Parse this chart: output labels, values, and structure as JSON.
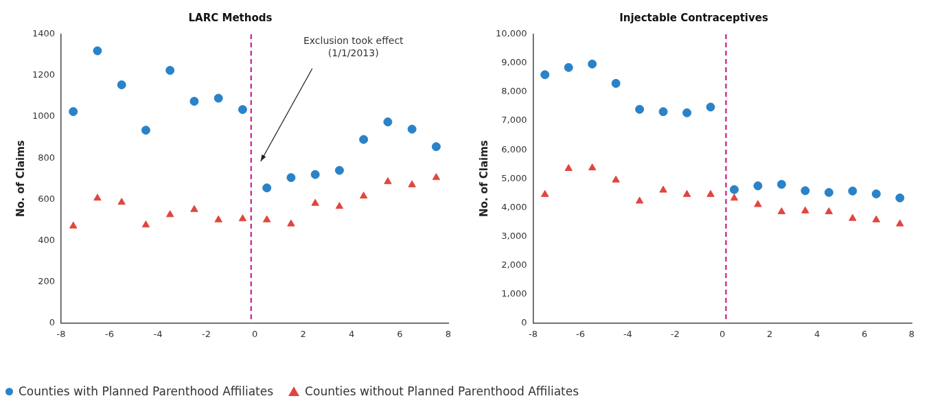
{
  "chart_data": [
    {
      "type": "scatter",
      "title": "LARC Methods",
      "ylabel": "No. of Claims",
      "x": [
        -7.5,
        -6.5,
        -5.5,
        -4.5,
        -3.5,
        -2.5,
        -1.5,
        -0.5,
        0.5,
        1.5,
        2.5,
        3.5,
        4.5,
        5.5,
        6.5,
        7.5
      ],
      "series": [
        {
          "name": "Counties with Planned Parenthood Affiliates",
          "color": "#2a82c8",
          "marker": "circle",
          "values": [
            1025,
            1320,
            1155,
            935,
            1225,
            1075,
            1090,
            1035,
            655,
            705,
            720,
            740,
            890,
            975,
            940,
            855
          ]
        },
        {
          "name": "Counties without Planned Parenthood Affiliates",
          "color": "#e0463f",
          "marker": "triangle",
          "values": [
            470,
            605,
            585,
            475,
            525,
            550,
            500,
            505,
            500,
            480,
            580,
            565,
            615,
            685,
            670,
            705
          ]
        }
      ],
      "xlim": [
        -8,
        8
      ],
      "xticks": [
        -8,
        -6,
        -4,
        -2,
        0,
        2,
        4,
        6,
        8
      ],
      "ylim": [
        0,
        1400
      ],
      "yticks": [
        0,
        200,
        400,
        600,
        800,
        1000,
        1200,
        1400
      ],
      "ref_lines": [
        {
          "axis": "x",
          "value": -0.15,
          "color": "#cc3399",
          "line_style": "dashed"
        }
      ],
      "annotations": [
        "Exclusion took effect\n(1/1/2013)"
      ],
      "grid": false,
      "legend": "bottom"
    },
    {
      "type": "scatter",
      "title": "Injectable Contraceptives",
      "ylabel": "No. of Claims",
      "x": [
        -7.5,
        -6.5,
        -5.5,
        -4.5,
        -3.5,
        -2.5,
        -1.5,
        -0.5,
        0.5,
        1.5,
        2.5,
        3.5,
        4.5,
        5.5,
        6.5,
        7.5
      ],
      "series": [
        {
          "color": "#2a82c8",
          "marker": "circle",
          "values": [
            8600,
            8850,
            8970,
            8300,
            7400,
            7320,
            7280,
            7480,
            4620,
            4750,
            4800,
            4580,
            4520,
            4570,
            4470,
            4330
          ]
        },
        {
          "color": "#e0463f",
          "marker": "triangle",
          "values": [
            4450,
            5350,
            5370,
            4950,
            4220,
            4600,
            4450,
            4450,
            4320,
            4100,
            3850,
            3880,
            3850,
            3620,
            3570,
            3430
          ]
        }
      ],
      "xlim": [
        -8,
        8
      ],
      "xticks": [
        -8,
        -6,
        -4,
        -2,
        0,
        2,
        4,
        6,
        8
      ],
      "ylim": [
        0,
        10000
      ],
      "yticks": [
        0,
        {
          "value": 1000,
          "label": "1,000"
        },
        {
          "value": 2000,
          "label": "2,000"
        },
        {
          "value": 3000,
          "label": "3,000"
        },
        {
          "value": 4000,
          "label": "4,000"
        },
        {
          "value": 5000,
          "label": "5,000"
        },
        {
          "value": 6000,
          "label": "6,000"
        },
        {
          "value": 7000,
          "label": "7,000"
        },
        {
          "value": 8000,
          "label": "8,000"
        },
        {
          "value": 9000,
          "label": "9,000"
        },
        {
          "value": 10000,
          "label": "10,000"
        }
      ],
      "ref_lines": [
        {
          "axis": "x",
          "value": 0.15,
          "color": "#cc3399",
          "line_style": "dashed"
        }
      ],
      "grid": false,
      "legend": false
    }
  ]
}
